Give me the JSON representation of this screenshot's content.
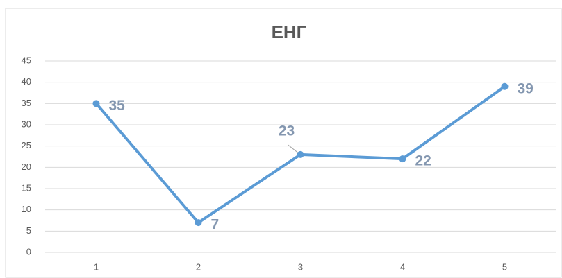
{
  "chart_data": {
    "type": "line",
    "title": "ЕНГ",
    "categories": [
      "1",
      "2",
      "3",
      "4",
      "5"
    ],
    "series": [
      {
        "name": "ЕНГ",
        "color": "#5b9bd5",
        "values": [
          35,
          7,
          23,
          22,
          39
        ]
      }
    ],
    "ylim": [
      0,
      45
    ],
    "yticks": [
      0,
      5,
      10,
      15,
      20,
      25,
      30,
      35,
      40,
      45
    ],
    "grid": true
  }
}
